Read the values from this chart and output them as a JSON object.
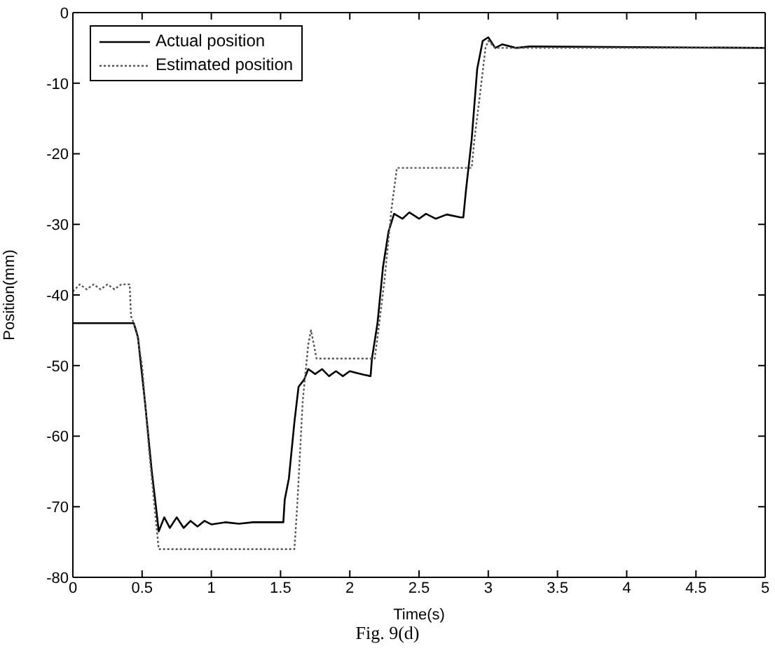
{
  "chart_data": {
    "type": "line",
    "xlabel": "Time(s)",
    "ylabel": "Position(mm)",
    "xlim": [
      0,
      5
    ],
    "xticks": [
      0,
      0.5,
      1,
      1.5,
      2,
      2.5,
      3,
      3.5,
      4,
      4.5,
      5
    ],
    "ylim": [
      -80,
      0
    ],
    "yticks": [
      -80,
      -70,
      -60,
      -50,
      -40,
      -30,
      -20,
      -10,
      0
    ],
    "grid": false,
    "legend": "top left",
    "marker": "none",
    "annotations": [
      "Fig. 9(d)"
    ],
    "series": [
      {
        "name": "Actual position",
        "color": "#000000",
        "line_style": "solid",
        "x": [
          0,
          0.44,
          0.47,
          0.52,
          0.57,
          0.6,
          0.62,
          0.66,
          0.7,
          0.75,
          0.8,
          0.85,
          0.9,
          0.95,
          1.0,
          1.1,
          1.2,
          1.3,
          1.45,
          1.52,
          1.53,
          1.56,
          1.6,
          1.63,
          1.67,
          1.7,
          1.75,
          1.8,
          1.85,
          1.9,
          1.95,
          2.0,
          2.1,
          2.15,
          2.16,
          2.2,
          2.24,
          2.28,
          2.32,
          2.38,
          2.43,
          2.5,
          2.55,
          2.62,
          2.7,
          2.8,
          2.82,
          2.84,
          2.88,
          2.92,
          2.96,
          3.0,
          3.05,
          3.1,
          3.2,
          3.3,
          5
        ],
        "values": [
          -44,
          -44,
          -46,
          -55,
          -65,
          -70,
          -73.5,
          -71.5,
          -73,
          -71.5,
          -73,
          -72,
          -72.8,
          -72,
          -72.5,
          -72.2,
          -72.4,
          -72.2,
          -72.2,
          -72.2,
          -69,
          -66,
          -58,
          -53,
          -52,
          -50.5,
          -51.2,
          -50.5,
          -51.5,
          -50.8,
          -51.5,
          -50.8,
          -51.3,
          -51.5,
          -49,
          -44,
          -36,
          -31,
          -28.5,
          -29.2,
          -28.3,
          -29.2,
          -28.5,
          -29.2,
          -28.6,
          -29,
          -29,
          -25,
          -18,
          -8,
          -4,
          -3.5,
          -5,
          -4.5,
          -5,
          -4.8,
          -5
        ]
      },
      {
        "name": "Estimated position",
        "color": "#555555",
        "line_style": "dotted",
        "x": [
          0,
          0.05,
          0.1,
          0.15,
          0.2,
          0.25,
          0.3,
          0.35,
          0.41,
          0.42,
          0.46,
          0.5,
          0.55,
          0.58,
          0.62,
          1.6,
          1.62,
          1.66,
          1.7,
          1.72,
          1.76,
          2.18,
          2.2,
          2.25,
          2.3,
          2.34,
          2.88,
          2.9,
          2.95,
          2.98,
          3.0,
          3.05,
          5
        ],
        "values": [
          -39.5,
          -38.5,
          -39.2,
          -38.5,
          -39.2,
          -38.5,
          -39.2,
          -38.5,
          -38.5,
          -43,
          -45,
          -50,
          -62,
          -68,
          -76,
          -76,
          -70,
          -55,
          -47,
          -45,
          -49,
          -49,
          -46,
          -38,
          -28,
          -22,
          -22,
          -18,
          -10,
          -5,
          -4,
          -5,
          -5
        ]
      }
    ]
  }
}
